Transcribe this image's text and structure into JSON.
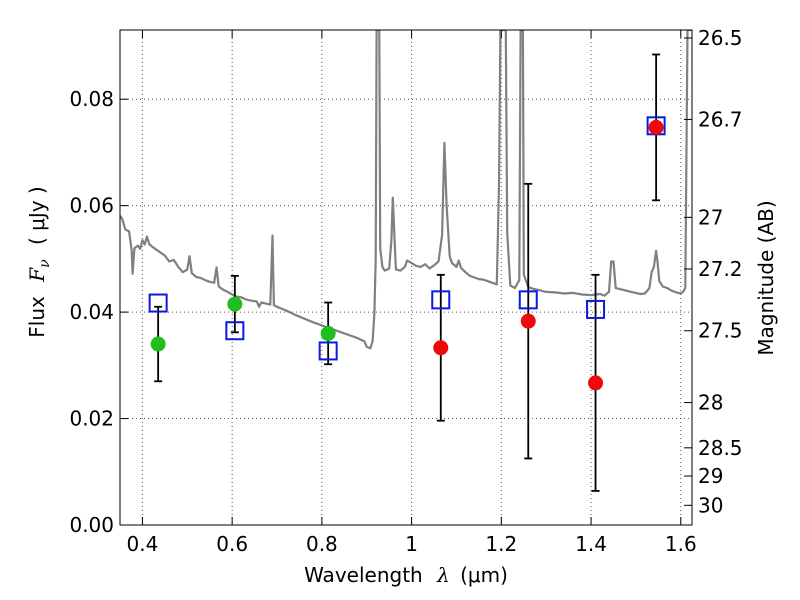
{
  "colors": {
    "model": "#808080",
    "green_points": "#1fbf1f",
    "red_points": "#ee0a0a",
    "model_boxes": "#0a1adf",
    "errorbars": "#000000",
    "grid": "#555555"
  },
  "axes": {
    "xlabel_text": "Wavelength",
    "xlabel_lambda": "λ",
    "xlabel_unit": "(μm)",
    "ylabel_text": "Flux",
    "ylabel_symbol": "F",
    "ylabel_sub": "ν",
    "ylabel_unit": "( μJy )",
    "y2label": "Magnitude (AB)"
  },
  "chart_data": {
    "type": "scatter",
    "title": "",
    "xlim": [
      0.35,
      1.625
    ],
    "ylim": [
      0,
      0.093
    ],
    "grid": true,
    "legend": "none",
    "xticks": [
      0.4,
      0.6,
      0.8,
      1.0,
      1.2,
      1.4,
      1.6
    ],
    "xtick_labels": [
      "0.4",
      "0.6",
      "0.8",
      "1",
      "1.2",
      "1.4",
      "1.6"
    ],
    "yticks": [
      0.0,
      0.02,
      0.04,
      0.06,
      0.08
    ],
    "ytick_labels": [
      "0.00",
      "0.02",
      "0.04",
      "0.06",
      "0.08"
    ],
    "y2_tick_labels": [
      "26.5",
      "26.7",
      "27",
      "27.2",
      "27.5",
      "28",
      "28.5",
      "29",
      "30"
    ],
    "y2_tick_flux": [
      0.0915,
      0.0762,
      0.0578,
      0.0481,
      0.0365,
      0.023,
      0.0145,
      0.0092,
      0.0037
    ],
    "observed_optical": [
      {
        "x": 0.435,
        "y": 0.034,
        "err": 0.007
      },
      {
        "x": 0.606,
        "y": 0.0415,
        "err": 0.0053
      },
      {
        "x": 0.814,
        "y": 0.036,
        "err": 0.0058
      }
    ],
    "observed_nir": [
      {
        "x": 1.065,
        "y": 0.0333,
        "err": 0.0137
      },
      {
        "x": 1.26,
        "y": 0.0383,
        "err": 0.0258
      },
      {
        "x": 1.41,
        "y": 0.0267,
        "err": 0.0203
      },
      {
        "x": 1.545,
        "y": 0.0747,
        "err": 0.0137
      }
    ],
    "model_photometry": [
      {
        "x": 0.435,
        "y": 0.0417
      },
      {
        "x": 0.606,
        "y": 0.0365
      },
      {
        "x": 0.814,
        "y": 0.0327
      },
      {
        "x": 1.065,
        "y": 0.0423
      },
      {
        "x": 1.26,
        "y": 0.0423
      },
      {
        "x": 1.41,
        "y": 0.0405
      },
      {
        "x": 1.545,
        "y": 0.075
      }
    ],
    "model_spectrum": [
      [
        0.35,
        0.0581
      ],
      [
        0.355,
        0.0575
      ],
      [
        0.362,
        0.0555
      ],
      [
        0.37,
        0.0552
      ],
      [
        0.373,
        0.0535
      ],
      [
        0.376,
        0.0515
      ],
      [
        0.378,
        0.0472
      ],
      [
        0.382,
        0.052
      ],
      [
        0.39,
        0.0525
      ],
      [
        0.395,
        0.0519
      ],
      [
        0.4,
        0.0535
      ],
      [
        0.405,
        0.0527
      ],
      [
        0.41,
        0.0542
      ],
      [
        0.415,
        0.0528
      ],
      [
        0.42,
        0.0524
      ],
      [
        0.43,
        0.0518
      ],
      [
        0.44,
        0.0512
      ],
      [
        0.45,
        0.0506
      ],
      [
        0.46,
        0.0495
      ],
      [
        0.47,
        0.0498
      ],
      [
        0.48,
        0.0485
      ],
      [
        0.49,
        0.0475
      ],
      [
        0.5,
        0.048
      ],
      [
        0.505,
        0.0505
      ],
      [
        0.51,
        0.0473
      ],
      [
        0.52,
        0.0466
      ],
      [
        0.53,
        0.0464
      ],
      [
        0.54,
        0.046
      ],
      [
        0.55,
        0.0457
      ],
      [
        0.56,
        0.0455
      ],
      [
        0.565,
        0.0484
      ],
      [
        0.57,
        0.0448
      ],
      [
        0.58,
        0.0442
      ],
      [
        0.59,
        0.0438
      ],
      [
        0.6,
        0.0433
      ],
      [
        0.61,
        0.0429
      ],
      [
        0.62,
        0.0428
      ],
      [
        0.63,
        0.0424
      ],
      [
        0.64,
        0.0422
      ],
      [
        0.655,
        0.042
      ],
      [
        0.66,
        0.041
      ],
      [
        0.665,
        0.0418
      ],
      [
        0.675,
        0.0416
      ],
      [
        0.685,
        0.0414
      ],
      [
        0.69,
        0.0544
      ],
      [
        0.693,
        0.0413
      ],
      [
        0.7,
        0.041
      ],
      [
        0.72,
        0.0403
      ],
      [
        0.74,
        0.0395
      ],
      [
        0.76,
        0.0388
      ],
      [
        0.78,
        0.0381
      ],
      [
        0.8,
        0.0375
      ],
      [
        0.82,
        0.0369
      ],
      [
        0.84,
        0.0363
      ],
      [
        0.86,
        0.0357
      ],
      [
        0.88,
        0.0351
      ],
      [
        0.895,
        0.0345
      ],
      [
        0.9,
        0.0335
      ],
      [
        0.908,
        0.0332
      ],
      [
        0.913,
        0.0345
      ],
      [
        0.917,
        0.0398
      ],
      [
        0.92,
        0.05
      ],
      [
        0.922,
        0.093
      ],
      [
        0.928,
        0.093
      ],
      [
        0.93,
        0.052
      ],
      [
        0.935,
        0.0485
      ],
      [
        0.94,
        0.0478
      ],
      [
        0.95,
        0.0482
      ],
      [
        0.955,
        0.0535
      ],
      [
        0.958,
        0.0615
      ],
      [
        0.962,
        0.0535
      ],
      [
        0.965,
        0.048
      ],
      [
        0.975,
        0.0478
      ],
      [
        0.985,
        0.0485
      ],
      [
        0.99,
        0.0497
      ],
      [
        1.0,
        0.0492
      ],
      [
        1.01,
        0.0487
      ],
      [
        1.02,
        0.0485
      ],
      [
        1.03,
        0.049
      ],
      [
        1.04,
        0.0482
      ],
      [
        1.05,
        0.0488
      ],
      [
        1.06,
        0.0495
      ],
      [
        1.068,
        0.0545
      ],
      [
        1.073,
        0.0718
      ],
      [
        1.078,
        0.06
      ],
      [
        1.085,
        0.0505
      ],
      [
        1.09,
        0.0492
      ],
      [
        1.1,
        0.0485
      ],
      [
        1.105,
        0.0497
      ],
      [
        1.11,
        0.0483
      ],
      [
        1.12,
        0.0475
      ],
      [
        1.13,
        0.0468
      ],
      [
        1.14,
        0.0465
      ],
      [
        1.15,
        0.0462
      ],
      [
        1.16,
        0.0461
      ],
      [
        1.17,
        0.0458
      ],
      [
        1.18,
        0.0455
      ],
      [
        1.19,
        0.0452
      ],
      [
        1.195,
        0.065
      ],
      [
        1.198,
        0.093
      ],
      [
        1.21,
        0.093
      ],
      [
        1.213,
        0.055
      ],
      [
        1.22,
        0.045
      ],
      [
        1.23,
        0.0445
      ],
      [
        1.24,
        0.046
      ],
      [
        1.243,
        0.093
      ],
      [
        1.248,
        0.093
      ],
      [
        1.25,
        0.047
      ],
      [
        1.26,
        0.0447
      ],
      [
        1.27,
        0.0444
      ],
      [
        1.28,
        0.0442
      ],
      [
        1.3,
        0.0438
      ],
      [
        1.32,
        0.0437
      ],
      [
        1.34,
        0.0435
      ],
      [
        1.36,
        0.0436
      ],
      [
        1.38,
        0.0433
      ],
      [
        1.4,
        0.0432
      ],
      [
        1.42,
        0.0434
      ],
      [
        1.43,
        0.0431
      ],
      [
        1.44,
        0.0438
      ],
      [
        1.445,
        0.0495
      ],
      [
        1.45,
        0.0495
      ],
      [
        1.455,
        0.0445
      ],
      [
        1.47,
        0.0442
      ],
      [
        1.49,
        0.0438
      ],
      [
        1.51,
        0.0434
      ],
      [
        1.52,
        0.0435
      ],
      [
        1.53,
        0.0445
      ],
      [
        1.535,
        0.0475
      ],
      [
        1.54,
        0.0485
      ],
      [
        1.545,
        0.0515
      ],
      [
        1.548,
        0.0495
      ],
      [
        1.552,
        0.0458
      ],
      [
        1.56,
        0.0448
      ],
      [
        1.57,
        0.0445
      ],
      [
        1.58,
        0.044
      ],
      [
        1.59,
        0.0437
      ],
      [
        1.6,
        0.0435
      ],
      [
        1.605,
        0.0438
      ],
      [
        1.61,
        0.0445
      ],
      [
        1.615,
        0.093
      ],
      [
        1.625,
        0.093
      ]
    ]
  }
}
